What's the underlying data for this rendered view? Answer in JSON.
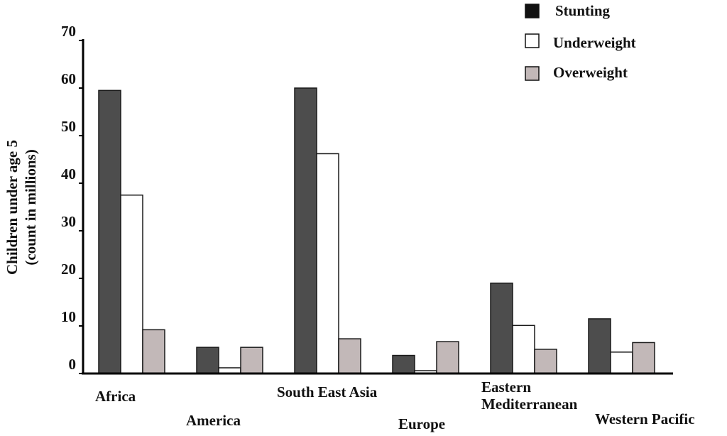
{
  "chart_data": {
    "type": "bar",
    "categories": [
      [
        "Africa"
      ],
      [
        "America"
      ],
      [
        "South East Asia"
      ],
      [
        "Europe"
      ],
      [
        "Eastern",
        "Mediterranean"
      ],
      [
        "Western Pacific"
      ]
    ],
    "series": [
      {
        "name": "Stunting",
        "values": [
          59.5,
          5.5,
          60,
          3.8,
          19,
          11.5
        ],
        "color": "#4d4d4d"
      },
      {
        "name": "Underweight",
        "values": [
          37.5,
          1.2,
          46.2,
          0.6,
          10.1,
          4.5
        ],
        "color": "#ffffff"
      },
      {
        "name": "Overweight",
        "values": [
          9.2,
          5.5,
          7.3,
          6.7,
          5.1,
          6.5
        ],
        "color": "#c2b8b8"
      }
    ],
    "ylabel": [
      "Children under age 5",
      "(count in millions)"
    ],
    "yticks": [
      0,
      10,
      20,
      30,
      40,
      50,
      60,
      70
    ],
    "ylim": [
      0,
      70
    ],
    "grid": false,
    "legend_position": "top-right"
  }
}
